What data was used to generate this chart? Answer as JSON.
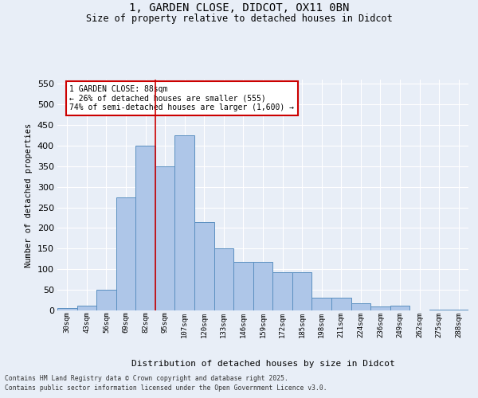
{
  "title_line1": "1, GARDEN CLOSE, DIDCOT, OX11 0BN",
  "title_line2": "Size of property relative to detached houses in Didcot",
  "xlabel": "Distribution of detached houses by size in Didcot",
  "ylabel": "Number of detached properties",
  "categories": [
    "30sqm",
    "43sqm",
    "56sqm",
    "69sqm",
    "82sqm",
    "95sqm",
    "107sqm",
    "120sqm",
    "133sqm",
    "146sqm",
    "159sqm",
    "172sqm",
    "185sqm",
    "198sqm",
    "211sqm",
    "224sqm",
    "236sqm",
    "249sqm",
    "262sqm",
    "275sqm",
    "288sqm"
  ],
  "values": [
    5,
    12,
    50,
    275,
    400,
    350,
    425,
    215,
    150,
    118,
    118,
    92,
    92,
    30,
    30,
    17,
    10,
    12,
    0,
    2,
    2
  ],
  "bar_color": "#aec6e8",
  "bar_edge_color": "#5a8fc0",
  "vline_x_index": 4,
  "vline_color": "#cc0000",
  "annotation_box_text": "1 GARDEN CLOSE: 88sqm\n← 26% of detached houses are smaller (555)\n74% of semi-detached houses are larger (1,600) →",
  "annotation_box_color": "#cc0000",
  "annotation_box_fill": "#ffffff",
  "ylim": [
    0,
    560
  ],
  "yticks": [
    0,
    50,
    100,
    150,
    200,
    250,
    300,
    350,
    400,
    450,
    500,
    550
  ],
  "background_color": "#e8eef7",
  "grid_color": "#ffffff",
  "footer_line1": "Contains HM Land Registry data © Crown copyright and database right 2025.",
  "footer_line2": "Contains public sector information licensed under the Open Government Licence v3.0."
}
